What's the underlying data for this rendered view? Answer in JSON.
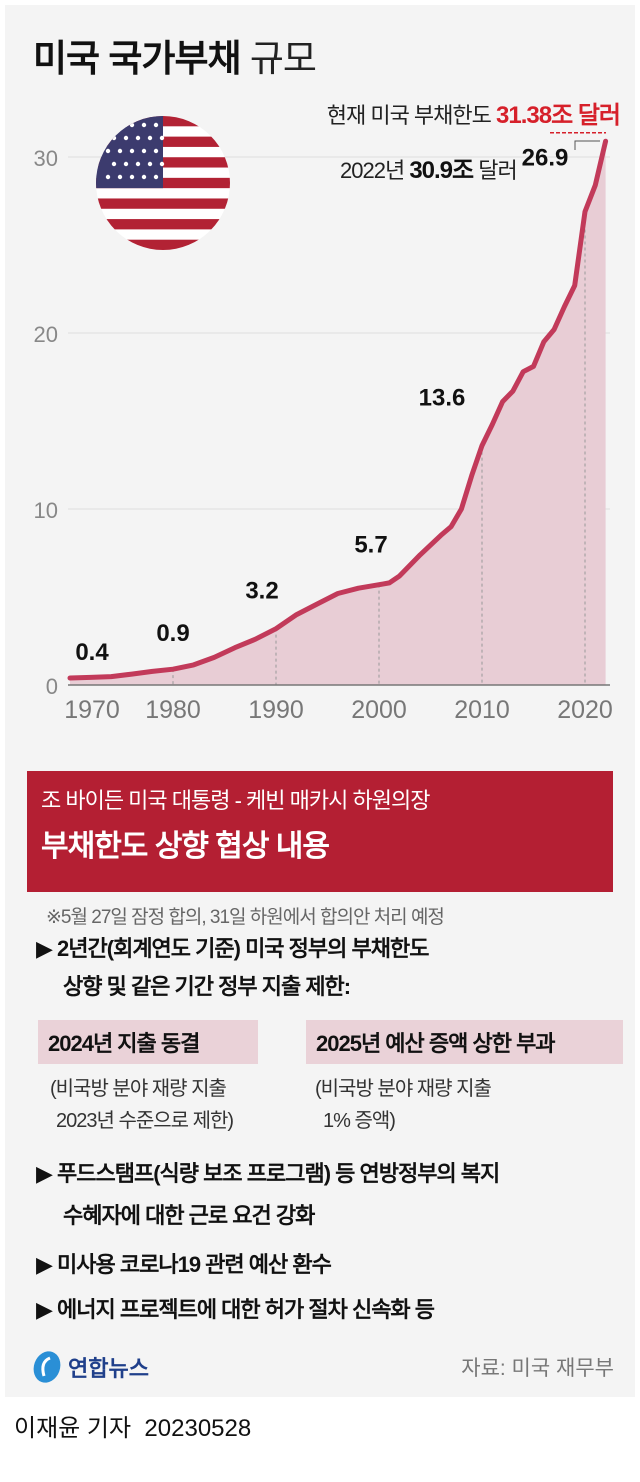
{
  "title": {
    "bold": "미국 국가부채",
    "light": "규모"
  },
  "annotations": {
    "limit_prefix": "현재 미국 부채한도",
    "limit_value": "31.38조 달러",
    "y2022_prefix": "2022년",
    "y2022_value": "30.9조",
    "y2022_suffix": "달러"
  },
  "chart_data": {
    "type": "area",
    "xlabel": "",
    "ylabel": "",
    "xlim": [
      1970,
      2022
    ],
    "ylim": [
      0,
      31.38
    ],
    "x_ticks": [
      "1970",
      "1980",
      "1990",
      "2000",
      "2010",
      "2020"
    ],
    "y_ticks": [
      "0",
      "10",
      "20",
      "30"
    ],
    "grid": "horizontal",
    "colors": {
      "line": "#c23a5a",
      "fill": "#e8cdd5"
    },
    "x": [
      1970,
      1972,
      1974,
      1976,
      1978,
      1980,
      1982,
      1984,
      1986,
      1988,
      1990,
      1992,
      1994,
      1996,
      1998,
      2000,
      2001,
      2002,
      2004,
      2006,
      2007,
      2008,
      2009,
      2010,
      2011,
      2012,
      2013,
      2014,
      2015,
      2016,
      2017,
      2018,
      2019,
      2020,
      2021,
      2022
    ],
    "values": [
      0.4,
      0.43,
      0.48,
      0.62,
      0.77,
      0.9,
      1.14,
      1.57,
      2.12,
      2.6,
      3.2,
      4.0,
      4.6,
      5.2,
      5.5,
      5.7,
      5.8,
      6.2,
      7.4,
      8.5,
      9.0,
      10.0,
      11.9,
      13.6,
      14.8,
      16.1,
      16.7,
      17.8,
      18.1,
      19.5,
      20.2,
      21.5,
      22.7,
      26.9,
      28.4,
      30.9
    ],
    "labels": [
      {
        "year": 1970,
        "text": "0.4"
      },
      {
        "year": 1980,
        "text": "0.9"
      },
      {
        "year": 1990,
        "text": "3.2"
      },
      {
        "year": 2000,
        "text": "5.7"
      },
      {
        "year": 2010,
        "text": "13.6"
      },
      {
        "year": 2020,
        "text": "26.9"
      }
    ],
    "reference_line": {
      "value": 31.38,
      "color": "#d6202a"
    }
  },
  "banner": {
    "line1": "조 바이든 미국 대통령 - 케빈 매카시 하원의장",
    "line2": "부채한도 상향 협상 내용",
    "color": "#b41f33"
  },
  "note": "※5월 27일 잠정 합의, 31일 하원에서 합의안 처리 예정",
  "items": {
    "b1_line1": "▶ 2년간(회계연도 기준) 미국 정부의 부채한도",
    "b1_line2": "상향 및 같은 기간 정부 지출 제한:",
    "tag1": "2024년 지출 동결",
    "tag2": "2025년 예산 증액 상한 부과",
    "sub1_line1": "(비국방 분야 재량 지출",
    "sub1_line2": "2023년 수준으로 제한)",
    "sub2_line1": "(비국방 분야 재량 지출",
    "sub2_line2": "1% 증액)",
    "b2_line1": "▶ 푸드스탬프(식량 보조 프로그램) 등 연방정부의 복지",
    "b2_line2": "수혜자에 대한 근로 요건 강화",
    "b3": "▶ 미사용 코로나19 관련 예산 환수",
    "b4": "▶ 에너지 프로젝트에 대한 허가 절차 신속화 등"
  },
  "footer": {
    "logo": "연합뉴스",
    "source": "자료: 미국 재무부"
  },
  "byline": {
    "author": "이재윤 기자",
    "date": "20230528"
  }
}
